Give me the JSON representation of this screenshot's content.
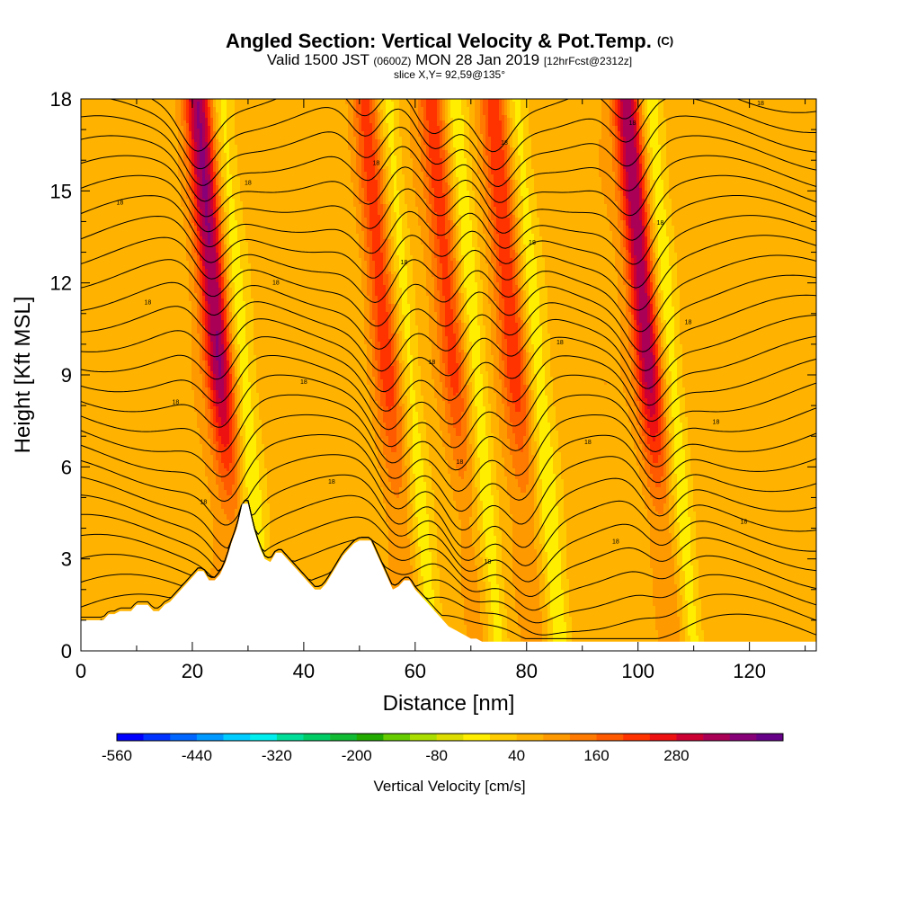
{
  "title": {
    "main": "Angled Section: Vertical Velocity & Pot.Temp.",
    "main_tag": "(C)",
    "valid_prefix": "Valid 1500 JST",
    "valid_utc": "(0600Z)",
    "valid_date": "MON 28 Jan 2019",
    "forecast": "[12hrFcst@2312z]",
    "slice": "slice X,Y= 92,59@135°"
  },
  "chart_data": {
    "type": "heatmap",
    "xlabel": "Distance [nm]",
    "ylabel": "Height [Kft MSL]",
    "xlim": [
      0,
      132
    ],
    "ylim": [
      0,
      18
    ],
    "x_ticks": [
      "0",
      "20",
      "40",
      "60",
      "80",
      "100",
      "120"
    ],
    "y_ticks": [
      "0",
      "3",
      "6",
      "9",
      "12",
      "15",
      "18"
    ],
    "colorbar": {
      "title": "Vertical Velocity [cm/s]",
      "labels": [
        "-560",
        "-440",
        "-320",
        "-200",
        "-80",
        "40",
        "160",
        "280"
      ],
      "colors": [
        "#0000ff",
        "#0033ff",
        "#0066ff",
        "#0099ff",
        "#00ccff",
        "#00eeee",
        "#00dd99",
        "#00cc66",
        "#11bb33",
        "#22aa00",
        "#66cc00",
        "#aadd00",
        "#dddd00",
        "#ffee00",
        "#ffcc00",
        "#ffb300",
        "#ff9900",
        "#ff7a00",
        "#ff5a00",
        "#ff3300",
        "#ee1111",
        "#cc0033",
        "#aa0055",
        "#880077",
        "#660088"
      ]
    },
    "updraft_bands_nm": [
      25,
      55,
      67,
      78,
      102
    ],
    "terrain_kft": [
      [
        0,
        1.0
      ],
      [
        1,
        1.0
      ],
      [
        2,
        1.0
      ],
      [
        3,
        1.0
      ],
      [
        4,
        1.0
      ],
      [
        5,
        1.2
      ],
      [
        6,
        1.2
      ],
      [
        7,
        1.3
      ],
      [
        8,
        1.3
      ],
      [
        9,
        1.3
      ],
      [
        10,
        1.5
      ],
      [
        11,
        1.5
      ],
      [
        12,
        1.5
      ],
      [
        13,
        1.3
      ],
      [
        14,
        1.3
      ],
      [
        15,
        1.5
      ],
      [
        16,
        1.6
      ],
      [
        17,
        1.8
      ],
      [
        18,
        2.0
      ],
      [
        19,
        2.2
      ],
      [
        20,
        2.4
      ],
      [
        21,
        2.6
      ],
      [
        22,
        2.6
      ],
      [
        23,
        2.3
      ],
      [
        24,
        2.3
      ],
      [
        25,
        2.5
      ],
      [
        26,
        2.9
      ],
      [
        27,
        3.5
      ],
      [
        28,
        4.0
      ],
      [
        29,
        4.8
      ],
      [
        30,
        4.8
      ],
      [
        31,
        4.0
      ],
      [
        32,
        3.4
      ],
      [
        33,
        3.0
      ],
      [
        34,
        2.9
      ],
      [
        35,
        3.2
      ],
      [
        36,
        3.2
      ],
      [
        37,
        3.0
      ],
      [
        38,
        2.8
      ],
      [
        39,
        2.6
      ],
      [
        40,
        2.4
      ],
      [
        41,
        2.2
      ],
      [
        42,
        2.0
      ],
      [
        43,
        2.0
      ],
      [
        44,
        2.2
      ],
      [
        45,
        2.5
      ],
      [
        46,
        2.8
      ],
      [
        47,
        3.1
      ],
      [
        48,
        3.3
      ],
      [
        49,
        3.5
      ],
      [
        50,
        3.6
      ],
      [
        51,
        3.6
      ],
      [
        52,
        3.6
      ],
      [
        53,
        3.2
      ],
      [
        54,
        2.8
      ],
      [
        55,
        2.4
      ],
      [
        56,
        2.0
      ],
      [
        57,
        2.1
      ],
      [
        58,
        2.3
      ],
      [
        59,
        2.3
      ],
      [
        60,
        2.0
      ],
      [
        61,
        1.8
      ],
      [
        62,
        1.6
      ],
      [
        63,
        1.4
      ],
      [
        64,
        1.2
      ],
      [
        65,
        1.0
      ],
      [
        66,
        0.8
      ],
      [
        67,
        0.7
      ],
      [
        68,
        0.6
      ],
      [
        69,
        0.5
      ],
      [
        70,
        0.4
      ],
      [
        71,
        0.4
      ],
      [
        72,
        0.3
      ],
      [
        132,
        0.3
      ]
    ],
    "theta_labels": [
      "18",
      "18",
      "18",
      "18",
      "18",
      "18",
      "18",
      "18",
      "18",
      "18",
      "18",
      "18",
      "18",
      "18",
      "18",
      "18",
      "18",
      "18",
      "18",
      "18",
      "18",
      "18",
      "18",
      "18",
      "18",
      "18",
      "18",
      "18"
    ]
  }
}
